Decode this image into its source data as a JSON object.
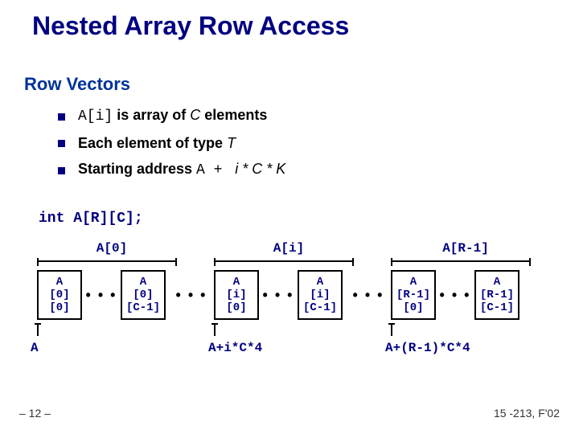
{
  "title": "Nested Array Row Access",
  "subheading": "Row Vectors",
  "bullets": {
    "b1_pre": "A[i]",
    "b1_mid": " is array of ",
    "b1_c": "C",
    "b1_post": " elements",
    "b2_pre": "Each element of type ",
    "b2_t": "T",
    "b3_pre": "Starting address ",
    "b3_a": "A + ",
    "b3_expr": "i * C * K"
  },
  "declaration": "int A[R][C];",
  "diagram": {
    "group_pad": 2,
    "labels": {
      "g0": "A[0]",
      "gi": "A[i]",
      "gR": "A[R-1]"
    },
    "cells": {
      "g0_first": "A\n[0]\n[0]",
      "g0_last": "A\n[0]\n[C-1]",
      "gi_first": "A\n[i]\n[0]",
      "gi_last": "A\n[i]\n[C-1]",
      "gR_first": "A\n[R-1]\n[0]",
      "gR_last": "A\n[R-1]\n[C-1]"
    },
    "dots": "• • •",
    "addresses": {
      "a0": "A",
      "ai": "A+i*C*4",
      "aR": "A+(R-1)*C*4"
    }
  },
  "footer": {
    "left": "– 12 –",
    "right": "15 -213, F'02"
  },
  "colors": {
    "heading": "#000080",
    "text": "#000000",
    "bg": "#ffffff"
  }
}
